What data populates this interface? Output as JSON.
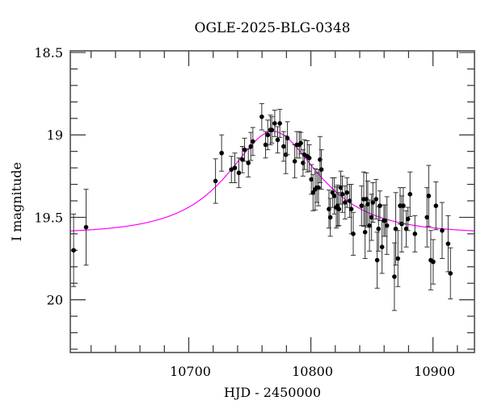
{
  "chart_data": {
    "type": "scatter",
    "title": "OGLE-2025-BLG-0348",
    "xlabel": "HJD - 2450000",
    "ylabel": "I magnitude",
    "xlim": [
      10603,
      10934
    ],
    "ylim": [
      20.32,
      18.49
    ],
    "y_inverted": true,
    "grid": false,
    "x_ticks": [
      10700,
      10800,
      10900
    ],
    "x_tick_labels": [
      "10700",
      "10800",
      "10900"
    ],
    "x_minor_step": 20,
    "y_ticks": [
      18.5,
      19,
      19.5,
      20
    ],
    "y_tick_labels": [
      "18.5",
      "19",
      "19.5",
      "20"
    ],
    "y_minor_step": 0.1,
    "colors": {
      "points": "#000000",
      "errorbars": "#333333",
      "model": "#ff00ff"
    },
    "points": [
      [
        10605.7,
        19.7,
        0.22
      ],
      [
        10615.9,
        19.56,
        0.23
      ],
      [
        10721.9,
        19.28,
        0.135
      ],
      [
        10726.9,
        19.11,
        0.11
      ],
      [
        10734.9,
        19.21,
        0.08
      ],
      [
        10737.7,
        19.2,
        0.09
      ],
      [
        10741.0,
        19.23,
        0.09
      ],
      [
        10743.9,
        19.15,
        0.08
      ],
      [
        10745.7,
        19.09,
        0.07
      ],
      [
        10748.8,
        19.17,
        0.085
      ],
      [
        10750.8,
        19.07,
        0.085
      ],
      [
        10752.5,
        19.04,
        0.085
      ],
      [
        10759.8,
        18.89,
        0.08
      ],
      [
        10762.9,
        19.06,
        0.08
      ],
      [
        10764.7,
        19.0,
        0.09
      ],
      [
        10766.9,
        18.97,
        0.09
      ],
      [
        10768.0,
        18.97,
        0.08
      ],
      [
        10770.4,
        18.93,
        0.08
      ],
      [
        10772.8,
        19.03,
        0.08
      ],
      [
        10774.6,
        18.93,
        0.085
      ],
      [
        10777.7,
        19.07,
        0.09
      ],
      [
        10779.5,
        19.12,
        0.115
      ],
      [
        10780.8,
        19.02,
        0.1
      ],
      [
        10786.8,
        19.16,
        0.1
      ],
      [
        10788.5,
        19.06,
        0.08
      ],
      [
        10790.5,
        19.06,
        0.08
      ],
      [
        10791.8,
        19.05,
        0.065
      ],
      [
        10793.6,
        19.17,
        0.08
      ],
      [
        10794.7,
        19.12,
        0.09
      ],
      [
        10797.1,
        19.13,
        0.095
      ],
      [
        10798.7,
        19.14,
        0.08
      ],
      [
        10800.4,
        19.27,
        0.09
      ],
      [
        10801.8,
        19.35,
        0.11
      ],
      [
        10803.5,
        19.33,
        0.125
      ],
      [
        10804.9,
        19.32,
        0.09
      ],
      [
        10806.2,
        19.32,
        0.11
      ],
      [
        10807.5,
        19.15,
        0.14
      ],
      [
        10808.6,
        19.21,
        0.12
      ],
      [
        10814.8,
        19.45,
        0.115
      ],
      [
        10815.9,
        19.5,
        0.115
      ],
      [
        10817.7,
        19.35,
        0.09
      ],
      [
        10819.2,
        19.37,
        0.11
      ],
      [
        10820.8,
        19.44,
        0.125
      ],
      [
        10821.9,
        19.43,
        0.125
      ],
      [
        10823.0,
        19.45,
        0.1
      ],
      [
        10824.5,
        19.32,
        0.1
      ],
      [
        10825.8,
        19.36,
        0.11
      ],
      [
        10828.0,
        19.41,
        0.1
      ],
      [
        10829.6,
        19.35,
        0.09
      ],
      [
        10831.8,
        19.4,
        0.1
      ],
      [
        10833.1,
        19.45,
        0.15
      ],
      [
        10834.7,
        19.6,
        0.13
      ],
      [
        10841.5,
        19.43,
        0.12
      ],
      [
        10843.3,
        19.39,
        0.165
      ],
      [
        10844.4,
        19.59,
        0.16
      ],
      [
        10845.5,
        19.39,
        0.16
      ],
      [
        10846.6,
        19.42,
        0.14
      ],
      [
        10848.0,
        19.55,
        0.155
      ],
      [
        10849.7,
        19.5,
        0.14
      ],
      [
        10850.8,
        19.41,
        0.12
      ],
      [
        10853.4,
        19.39,
        0.12
      ],
      [
        10854.3,
        19.76,
        0.17
      ],
      [
        10855.4,
        19.57,
        0.135
      ],
      [
        10856.5,
        19.43,
        0.09
      ],
      [
        10858.3,
        19.68,
        0.16
      ],
      [
        10859.8,
        19.52,
        0.095
      ],
      [
        10860.9,
        19.52,
        0.095
      ],
      [
        10862.3,
        19.55,
        0.175
      ],
      [
        10868.4,
        19.86,
        0.205
      ],
      [
        10869.5,
        19.57,
        0.22
      ],
      [
        10871.3,
        19.75,
        0.17
      ],
      [
        10873.1,
        19.43,
        0.11
      ],
      [
        10874.4,
        19.54,
        0.17
      ],
      [
        10875.7,
        19.43,
        0.11
      ],
      [
        10878.1,
        19.57,
        0.11
      ],
      [
        10879.5,
        19.51,
        0.07
      ],
      [
        10881.2,
        19.36,
        0.135
      ],
      [
        10885.2,
        19.6,
        0.11
      ],
      [
        10895.1,
        19.5,
        0.18
      ],
      [
        10896.5,
        19.37,
        0.185
      ],
      [
        10898.2,
        19.76,
        0.18
      ],
      [
        10900.2,
        19.77,
        0.135
      ],
      [
        10902.4,
        19.43,
        0.145
      ],
      [
        10907.5,
        19.58,
        0.17
      ],
      [
        10912.4,
        19.66,
        0.17
      ],
      [
        10914.3,
        19.84,
        0.155
      ]
    ],
    "points_columns": [
      "HJD - 2450000",
      "I magnitude",
      "error"
    ],
    "model": {
      "type": "point-lens",
      "t0": 10769,
      "u0": 0.65,
      "tE": 56,
      "I_base": 19.6
    }
  }
}
